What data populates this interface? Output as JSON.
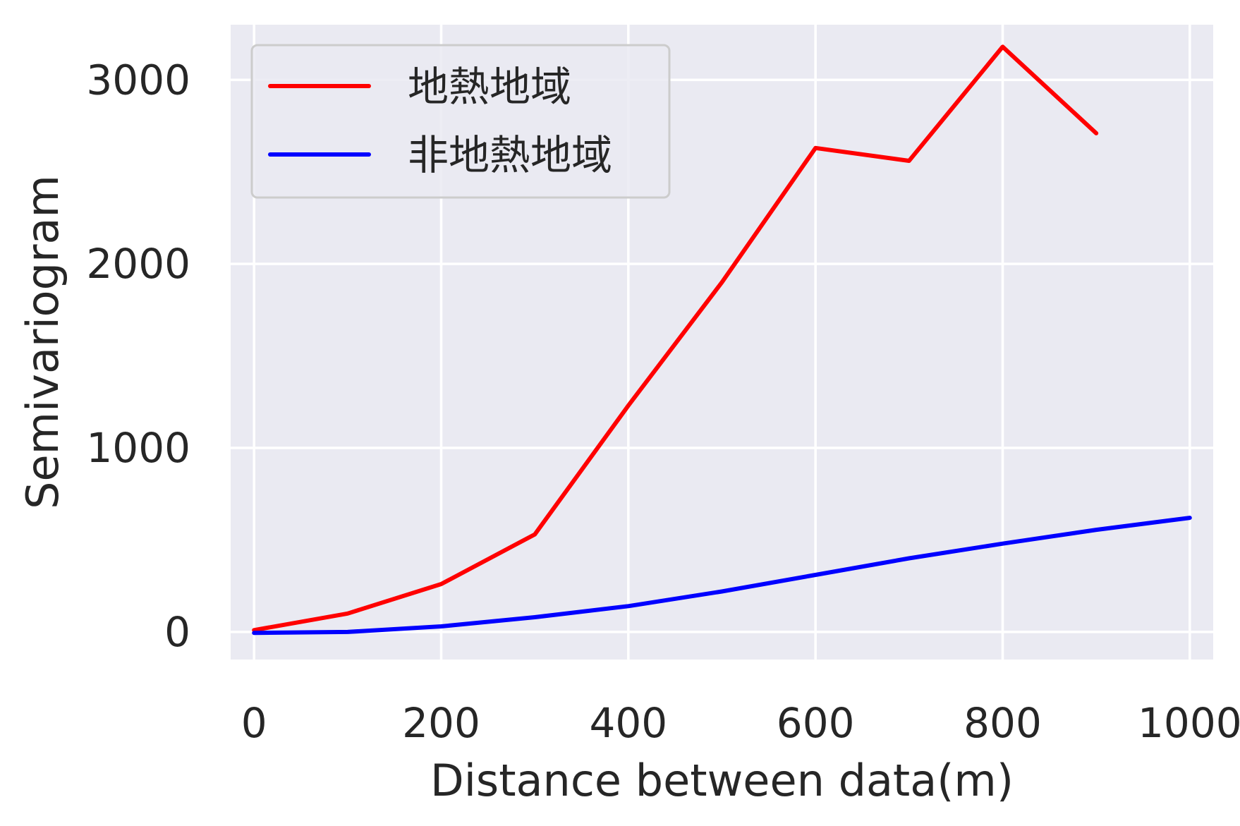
{
  "chart_data": {
    "type": "line",
    "title": "",
    "xlabel": "Distance between data(m)",
    "ylabel": "Semivariogram",
    "xlim": [
      -25,
      1025
    ],
    "ylim": [
      -150,
      3300
    ],
    "xticks": [
      0,
      200,
      400,
      600,
      800,
      1000
    ],
    "yticks": [
      0,
      1000,
      2000,
      3000
    ],
    "grid": true,
    "legend_position": "top-left",
    "background_color": "#eaeaf2",
    "grid_color": "#ffffff",
    "series": [
      {
        "name": "地熱地域",
        "color": "#ff0000",
        "x": [
          0,
          100,
          200,
          300,
          400,
          500,
          600,
          700,
          800,
          900
        ],
        "y": [
          10,
          100,
          260,
          530,
          1230,
          1900,
          2630,
          2560,
          3180,
          2710
        ]
      },
      {
        "name": "非地熱地域",
        "color": "#0000ff",
        "x": [
          0,
          100,
          200,
          300,
          400,
          500,
          600,
          700,
          800,
          900,
          1000
        ],
        "y": [
          -5,
          0,
          30,
          80,
          140,
          220,
          310,
          400,
          480,
          555,
          620
        ]
      }
    ]
  }
}
